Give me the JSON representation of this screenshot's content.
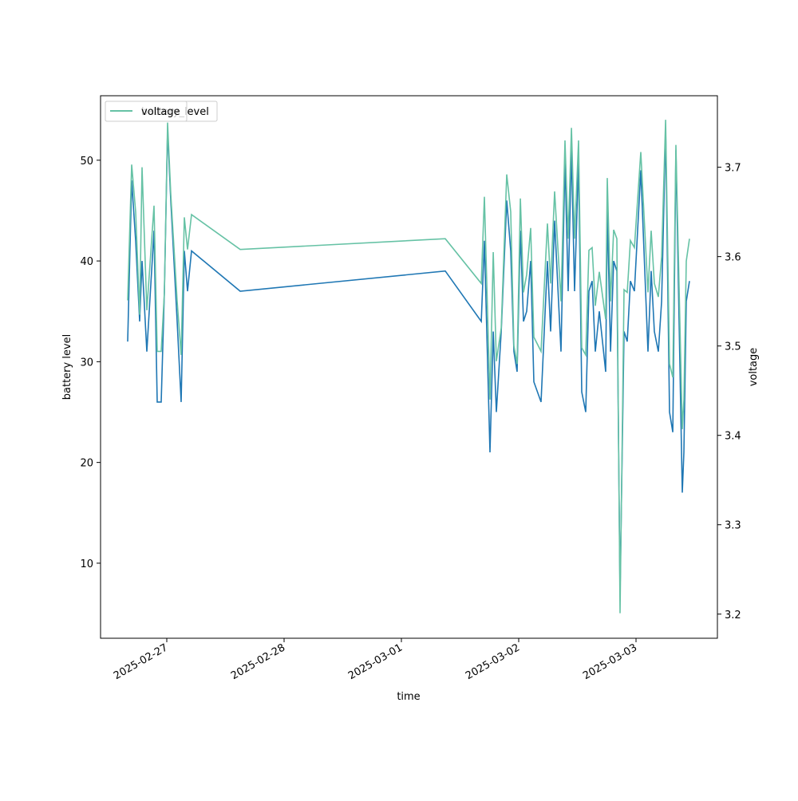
{
  "chart_data": {
    "type": "line",
    "xlabel": "time",
    "ylabel": "battery level",
    "y2label": "voltage",
    "x": [
      "2025-02-26T16:00",
      "2025-02-26T16:49",
      "2025-02-26T17:38",
      "2025-02-26T18:27",
      "2025-02-26T18:56",
      "2025-02-26T19:55",
      "2025-02-26T21:23",
      "2025-02-26T22:02",
      "2025-02-26T22:51",
      "2025-02-26T23:31",
      "2025-02-27T00:10",
      "2025-02-27T00:49",
      "2025-02-27T02:07",
      "2025-02-27T02:56",
      "2025-02-27T03:36",
      "2025-02-27T04:15",
      "2025-02-27T05:04",
      "2025-02-27T15:01",
      "2025-03-01T08:59",
      "2025-03-01T16:20",
      "2025-03-01T16:59",
      "2025-03-01T18:07",
      "2025-03-01T18:47",
      "2025-03-01T19:26",
      "2025-03-01T20:25",
      "2025-03-01T21:33",
      "2025-03-01T22:22",
      "2025-03-01T23:01",
      "2025-03-01T23:40",
      "2025-03-02T00:20",
      "2025-03-02T00:59",
      "2025-03-02T01:38",
      "2025-03-02T02:27",
      "2025-03-02T03:06",
      "2025-03-02T04:34",
      "2025-03-02T05:53",
      "2025-03-02T06:32",
      "2025-03-02T07:21",
      "2025-03-02T08:39",
      "2025-03-02T09:28",
      "2025-03-02T10:07",
      "2025-03-02T10:47",
      "2025-03-02T11:26",
      "2025-03-02T12:15",
      "2025-03-02T12:54",
      "2025-03-02T13:43",
      "2025-03-02T14:22",
      "2025-03-02T15:01",
      "2025-03-02T15:40",
      "2025-03-02T16:29",
      "2025-03-02T17:48",
      "2025-03-02T18:07",
      "2025-03-02T18:47",
      "2025-03-02T19:26",
      "2025-03-02T20:05",
      "2025-03-02T20:44",
      "2025-03-02T21:33",
      "2025-03-02T22:12",
      "2025-03-02T22:51",
      "2025-03-02T23:40",
      "2025-03-03T00:59",
      "2025-03-03T02:27",
      "2025-03-03T03:06",
      "2025-03-03T03:45",
      "2025-03-03T04:34",
      "2025-03-03T05:14",
      "2025-03-03T06:03",
      "2025-03-03T06:51",
      "2025-03-03T07:31",
      "2025-03-03T08:10",
      "2025-03-03T09:28",
      "2025-03-03T09:48",
      "2025-03-03T10:17",
      "2025-03-03T10:56"
    ],
    "series": [
      {
        "name": "battery_level",
        "color": "#1f77b4",
        "axis": "y",
        "values": [
          32,
          48,
          42,
          34,
          40,
          31,
          43,
          26,
          26,
          37,
          53,
          46,
          34,
          26,
          41,
          37,
          41,
          37,
          39,
          34,
          42,
          21,
          33,
          25,
          33,
          46,
          41,
          31,
          29,
          43,
          34,
          35,
          40,
          28,
          26,
          40,
          33,
          44,
          31,
          50,
          37,
          51,
          37,
          50,
          27,
          25,
          37,
          38,
          31,
          35,
          29,
          45,
          31,
          40,
          39,
          7,
          33,
          32,
          38,
          37,
          49,
          31,
          39,
          33,
          31,
          36,
          53,
          25,
          23,
          51,
          17,
          21,
          36,
          38
        ]
      },
      {
        "name": "voltage",
        "color": "#66c2a5",
        "axis": "y2",
        "values": [
          3.551,
          3.703,
          3.65,
          3.535,
          3.7,
          3.54,
          3.657,
          3.494,
          3.494,
          3.56,
          3.75,
          3.67,
          3.55,
          3.49,
          3.644,
          3.608,
          3.647,
          3.608,
          3.62,
          3.57,
          3.667,
          3.44,
          3.605,
          3.483,
          3.52,
          3.692,
          3.65,
          3.5,
          3.48,
          3.665,
          3.56,
          3.58,
          3.632,
          3.51,
          3.494,
          3.637,
          3.57,
          3.673,
          3.55,
          3.73,
          3.62,
          3.744,
          3.62,
          3.73,
          3.498,
          3.49,
          3.607,
          3.61,
          3.545,
          3.583,
          3.53,
          3.688,
          3.55,
          3.63,
          3.62,
          3.201,
          3.563,
          3.56,
          3.618,
          3.61,
          3.717,
          3.56,
          3.629,
          3.57,
          3.555,
          3.6,
          3.753,
          3.48,
          3.465,
          3.725,
          3.407,
          3.44,
          3.595,
          3.62
        ]
      }
    ],
    "xlim": [
      "2025-02-26T10:27",
      "2025-03-03T16:39"
    ],
    "xticks": [
      "2025-02-27",
      "2025-02-28",
      "2025-03-01",
      "2025-03-02",
      "2025-03-03"
    ],
    "ylim": [
      2.55,
      56.4
    ],
    "yticks": [
      10,
      20,
      30,
      40,
      50
    ],
    "y2lim": [
      3.173,
      3.78
    ],
    "y2ticks": [
      3.2,
      3.3,
      3.4,
      3.5,
      3.6,
      3.7
    ],
    "legend": "upper left"
  }
}
